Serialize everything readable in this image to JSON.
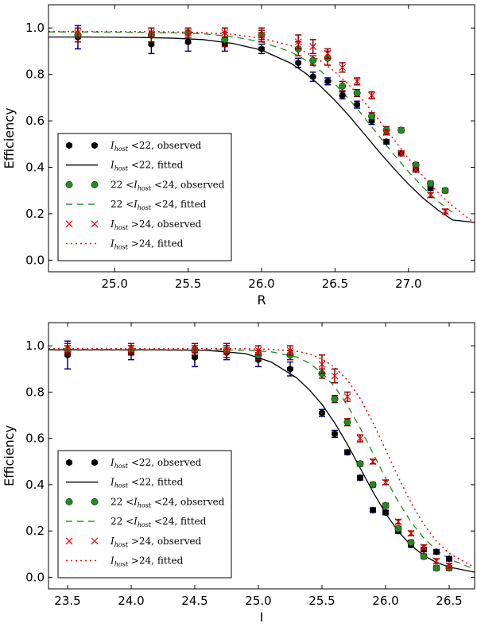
{
  "chart_data": [
    {
      "type": "scatter",
      "xlabel": "R",
      "ylabel": "Efficiency",
      "xlim": [
        24.55,
        27.45
      ],
      "ylim": [
        -0.05,
        1.1
      ],
      "xticks": [
        "25.0",
        "25.5",
        "26.0",
        "26.5",
        "27.0"
      ],
      "xtick_values": [
        25.0,
        25.5,
        26.0,
        26.5,
        27.0
      ],
      "yticks": [
        "0.0",
        "0.2",
        "0.4",
        "0.6",
        "0.8",
        "1.0"
      ],
      "ytick_values": [
        0.0,
        0.2,
        0.4,
        0.6,
        0.8,
        1.0
      ],
      "legend_position": "lower-left",
      "series": [
        {
          "name": "I_host<22, observed",
          "legend_label": "I_host <22, observed",
          "kind": "points",
          "marker": "hexagon",
          "color": "#000000",
          "errcolor": "#00008b",
          "x": [
            24.75,
            25.25,
            25.5,
            25.75,
            26.0,
            26.25,
            26.35,
            26.45,
            26.55,
            26.65,
            26.75,
            26.85,
            26.95,
            27.05,
            27.15
          ],
          "y": [
            0.96,
            0.93,
            0.94,
            0.93,
            0.91,
            0.85,
            0.79,
            0.77,
            0.71,
            0.67,
            0.6,
            0.51,
            0.46,
            0.39,
            0.31
          ],
          "err": [
            0.05,
            0.04,
            0.04,
            0.03,
            0.02,
            0.02,
            0.02,
            0.015,
            0.015,
            0.015,
            0.015,
            0.01,
            0.01,
            0.01,
            0.01
          ]
        },
        {
          "name": "I_host<22, fitted",
          "legend_label": "I_host <22, fitted",
          "kind": "line",
          "dash": "none",
          "color": "#000000",
          "x": [
            24.55,
            24.8,
            25.0,
            25.2,
            25.4,
            25.6,
            25.8,
            26.0,
            26.2,
            26.3,
            26.4,
            26.5,
            26.6,
            26.7,
            26.8,
            26.9,
            27.0,
            27.1,
            27.2,
            27.3,
            27.45
          ],
          "y": [
            0.961,
            0.961,
            0.96,
            0.959,
            0.956,
            0.95,
            0.934,
            0.905,
            0.848,
            0.805,
            0.75,
            0.688,
            0.618,
            0.543,
            0.467,
            0.395,
            0.327,
            0.267,
            0.216,
            0.173,
            0.163
          ]
        },
        {
          "name": "22<I_host<24, observed",
          "legend_label": "22 <I_host <24, observed",
          "kind": "points",
          "marker": "circle",
          "color": "#228b22",
          "errcolor": "#8b0000",
          "x": [
            24.75,
            25.25,
            25.5,
            25.75,
            26.0,
            26.25,
            26.35,
            26.45,
            26.55,
            26.65,
            26.75,
            26.85,
            26.95,
            27.05,
            27.15,
            27.25
          ],
          "y": [
            0.97,
            0.97,
            0.98,
            0.95,
            0.97,
            0.91,
            0.86,
            0.87,
            0.75,
            0.72,
            0.62,
            0.56,
            0.56,
            0.41,
            0.33,
            0.3
          ],
          "err": [
            0.03,
            0.03,
            0.02,
            0.03,
            0.02,
            0.03,
            0.02,
            0.03,
            0.02,
            0.015,
            0.015,
            0.015,
            0.01,
            0.01,
            0.01,
            0.01
          ]
        },
        {
          "name": "22<I_host<24, fitted",
          "legend_label": "22 <I_host <24, fitted",
          "kind": "line",
          "dash": "8,6",
          "color": "#228b22",
          "x": [
            24.55,
            24.8,
            25.0,
            25.2,
            25.4,
            25.6,
            25.8,
            26.0,
            26.2,
            26.3,
            26.4,
            26.5,
            26.6,
            26.7,
            26.8,
            26.9,
            27.0,
            27.1,
            27.2,
            27.3
          ],
          "y": [
            0.983,
            0.983,
            0.982,
            0.981,
            0.979,
            0.975,
            0.963,
            0.94,
            0.897,
            0.862,
            0.816,
            0.758,
            0.69,
            0.614,
            0.534,
            0.455,
            0.381,
            0.313,
            0.254,
            0.205
          ]
        },
        {
          "name": "I_host>24, observed",
          "legend_label": "I_host >24, observed",
          "kind": "points",
          "marker": "x",
          "color": "#ff0000",
          "errcolor": "#8b0000",
          "x": [
            24.75,
            25.25,
            25.5,
            25.75,
            26.0,
            26.25,
            26.35,
            26.45,
            26.55,
            26.65,
            26.75,
            26.85,
            26.95,
            27.05,
            27.15,
            27.25
          ],
          "y": [
            0.98,
            0.98,
            0.98,
            0.98,
            0.97,
            0.94,
            0.92,
            0.89,
            0.83,
            0.77,
            0.71,
            0.55,
            0.46,
            0.39,
            0.28,
            0.21
          ],
          "err": [
            0.02,
            0.02,
            0.02,
            0.02,
            0.03,
            0.03,
            0.03,
            0.02,
            0.02,
            0.015,
            0.015,
            0.01,
            0.01,
            0.01,
            0.01,
            0.01
          ]
        },
        {
          "name": "I_host>24, fitted",
          "legend_label": "I_host >24, fitted",
          "kind": "line",
          "dash": "2,4",
          "color": "#ff0000",
          "x": [
            24.55,
            24.8,
            25.0,
            25.2,
            25.4,
            25.6,
            25.8,
            26.0,
            26.2,
            26.3,
            26.4,
            26.5,
            26.6,
            26.7,
            26.8,
            26.9,
            27.0,
            27.1,
            27.2,
            27.3,
            27.45
          ],
          "y": [
            0.985,
            0.985,
            0.985,
            0.984,
            0.983,
            0.98,
            0.973,
            0.956,
            0.924,
            0.896,
            0.859,
            0.811,
            0.751,
            0.681,
            0.602,
            0.52,
            0.438,
            0.361,
            0.292,
            0.233,
            0.16
          ]
        }
      ]
    },
    {
      "type": "scatter",
      "xlabel": "I",
      "ylabel": "Efficiency",
      "xlim": [
        23.35,
        26.7
      ],
      "ylim": [
        -0.05,
        1.1
      ],
      "xticks": [
        "23.5",
        "24.0",
        "24.5",
        "25.0",
        "25.5",
        "26.0",
        "26.5"
      ],
      "xtick_values": [
        23.5,
        24.0,
        24.5,
        25.0,
        25.5,
        26.0,
        26.5
      ],
      "yticks": [
        "0.0",
        "0.2",
        "0.4",
        "0.6",
        "0.8",
        "1.0"
      ],
      "ytick_values": [
        0.0,
        0.2,
        0.4,
        0.6,
        0.8,
        1.0
      ],
      "legend_position": "lower-left",
      "series": [
        {
          "name": "I_host<22, observed",
          "legend_label": "I_host <22, observed",
          "kind": "points",
          "marker": "hexagon",
          "color": "#000000",
          "errcolor": "#00008b",
          "x": [
            23.5,
            24.0,
            24.5,
            24.75,
            25.0,
            25.25,
            25.5,
            25.6,
            25.7,
            25.8,
            25.9,
            26.0,
            26.1,
            26.2,
            26.3,
            26.4,
            26.5
          ],
          "y": [
            0.96,
            0.97,
            0.95,
            0.97,
            0.94,
            0.9,
            0.71,
            0.62,
            0.54,
            0.43,
            0.29,
            0.28,
            0.2,
            0.14,
            0.12,
            0.11,
            0.08
          ],
          "err": [
            0.06,
            0.03,
            0.04,
            0.03,
            0.03,
            0.03,
            0.015,
            0.015,
            0.01,
            0.01,
            0.01,
            0.01,
            0.01,
            0.01,
            0.01,
            0.01,
            0.01
          ]
        },
        {
          "name": "I_host<22, fitted",
          "legend_label": "I_host <22, fitted",
          "kind": "line",
          "dash": "none",
          "color": "#000000",
          "x": [
            23.35,
            23.8,
            24.2,
            24.6,
            24.9,
            25.1,
            25.3,
            25.4,
            25.5,
            25.6,
            25.7,
            25.8,
            25.9,
            26.0,
            26.1,
            26.2,
            26.3,
            26.4,
            26.5,
            26.7
          ],
          "y": [
            0.982,
            0.982,
            0.982,
            0.98,
            0.966,
            0.93,
            0.862,
            0.81,
            0.747,
            0.667,
            0.574,
            0.472,
            0.37,
            0.276,
            0.198,
            0.138,
            0.094,
            0.064,
            0.044,
            0.022
          ]
        },
        {
          "name": "22<I_host<24, observed",
          "legend_label": "22 <I_host <24, observed",
          "kind": "points",
          "marker": "circle",
          "color": "#228b22",
          "errcolor": "#8b0000",
          "x": [
            23.5,
            24.0,
            24.5,
            24.75,
            25.0,
            25.25,
            25.5,
            25.6,
            25.7,
            25.8,
            25.9,
            26.0,
            26.1,
            26.2,
            26.3,
            26.4,
            26.5
          ],
          "y": [
            0.98,
            0.98,
            0.98,
            0.98,
            0.96,
            0.96,
            0.88,
            0.77,
            0.67,
            0.49,
            0.4,
            0.31,
            0.21,
            0.15,
            0.09,
            0.04,
            0.04
          ],
          "err": [
            0.02,
            0.02,
            0.02,
            0.03,
            0.02,
            0.02,
            0.02,
            0.015,
            0.015,
            0.01,
            0.01,
            0.01,
            0.01,
            0.01,
            0.01,
            0.01,
            0.01
          ]
        },
        {
          "name": "22<I_host<24, fitted",
          "legend_label": "22 <I_host <24, fitted",
          "kind": "line",
          "dash": "8,6",
          "color": "#228b22",
          "x": [
            23.35,
            23.8,
            24.2,
            24.6,
            24.9,
            25.1,
            25.3,
            25.4,
            25.5,
            25.6,
            25.7,
            25.8,
            25.9,
            26.0,
            26.1,
            26.2,
            26.3,
            26.4,
            26.5,
            26.7
          ],
          "y": [
            0.984,
            0.984,
            0.984,
            0.983,
            0.981,
            0.974,
            0.952,
            0.925,
            0.883,
            0.823,
            0.743,
            0.645,
            0.537,
            0.428,
            0.326,
            0.239,
            0.17,
            0.117,
            0.079,
            0.035
          ]
        },
        {
          "name": "I_host>24, observed",
          "legend_label": "I_host >24, observed",
          "kind": "points",
          "marker": "x",
          "color": "#ff0000",
          "errcolor": "#8b0000",
          "x": [
            23.5,
            24.0,
            24.5,
            24.75,
            25.0,
            25.25,
            25.5,
            25.6,
            25.7,
            25.8,
            25.9,
            26.0,
            26.1,
            26.2,
            26.3,
            26.4,
            26.5
          ],
          "y": [
            0.99,
            0.99,
            0.99,
            0.98,
            0.98,
            0.98,
            0.92,
            0.87,
            0.78,
            0.6,
            0.5,
            0.41,
            0.24,
            0.19,
            0.13,
            0.07,
            0.05
          ],
          "err": [
            0.02,
            0.02,
            0.02,
            0.03,
            0.02,
            0.02,
            0.04,
            0.03,
            0.02,
            0.015,
            0.01,
            0.01,
            0.01,
            0.01,
            0.01,
            0.01,
            0.01
          ]
        },
        {
          "name": "I_host>24, fitted",
          "legend_label": "I_host >24, fitted",
          "kind": "line",
          "dash": "2,4",
          "color": "#ff0000",
          "x": [
            23.35,
            23.8,
            24.2,
            24.6,
            24.9,
            25.1,
            25.3,
            25.4,
            25.5,
            25.6,
            25.7,
            25.8,
            25.9,
            26.0,
            26.1,
            26.2,
            26.3,
            26.4,
            26.5,
            26.7
          ],
          "y": [
            0.988,
            0.988,
            0.988,
            0.988,
            0.987,
            0.985,
            0.976,
            0.965,
            0.943,
            0.907,
            0.852,
            0.772,
            0.669,
            0.552,
            0.432,
            0.322,
            0.229,
            0.156,
            0.103,
            0.043
          ]
        }
      ]
    }
  ]
}
